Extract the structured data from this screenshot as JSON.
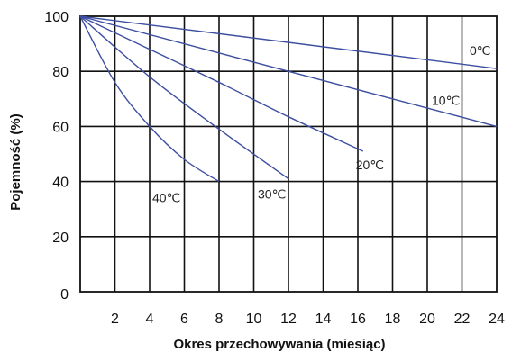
{
  "chart_data": {
    "type": "line",
    "title": "",
    "xlabel": "Okres przechowywania (miesiąc)",
    "ylabel": "Pojemność (%)",
    "xlim": [
      0,
      24
    ],
    "ylim": [
      0,
      100
    ],
    "x_ticks": [
      "2",
      "4",
      "6",
      "8",
      "10",
      "12",
      "14",
      "16",
      "18",
      "20",
      "22",
      "24"
    ],
    "y_ticks": [
      "0",
      "20",
      "40",
      "60",
      "80",
      "100"
    ],
    "grid": true,
    "line_color": "#3d4fa0",
    "series": [
      {
        "name": "0℃",
        "x": [
          0,
          24
        ],
        "y": [
          100,
          81
        ]
      },
      {
        "name": "10℃",
        "x": [
          0,
          24
        ],
        "y": [
          100,
          60
        ]
      },
      {
        "name": "20℃",
        "x": [
          0,
          4,
          8,
          12,
          16.3
        ],
        "y": [
          100,
          88,
          76,
          63.5,
          51
        ]
      },
      {
        "name": "30℃",
        "x": [
          0,
          4,
          8,
          12
        ],
        "y": [
          100,
          78,
          59,
          41
        ]
      },
      {
        "name": "40℃",
        "x": [
          0,
          2,
          4,
          6,
          8
        ],
        "y": [
          100,
          76,
          60,
          48,
          40
        ]
      }
    ]
  }
}
